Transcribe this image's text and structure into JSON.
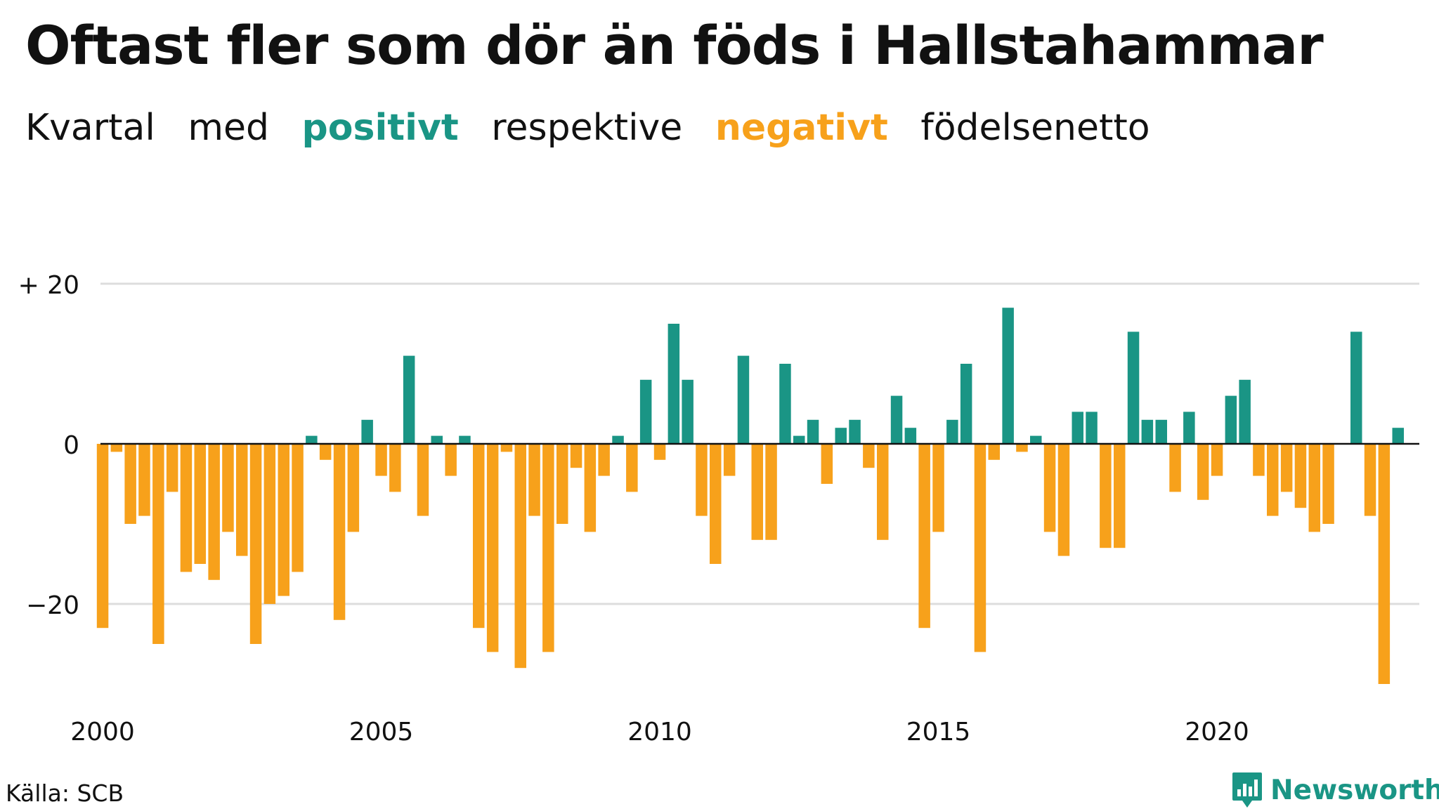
{
  "title": "Oftast fler som dör än föds i Hallstahammar",
  "subtitle": {
    "part1": "Kvartal",
    "part2": "med",
    "positive": "positivt",
    "part3": "respektive",
    "negative": "negativt",
    "part4": "födelsenetto"
  },
  "colors": {
    "positive": "#1a9585",
    "negative": "#f7a11b",
    "grid": "#dddddd",
    "zero_line": "#111111"
  },
  "source": "Källa: SCB",
  "logo": {
    "text": "Newsworthy",
    "icon": "bar-chart-icon"
  },
  "chart_data": {
    "type": "bar",
    "x_start": 2000,
    "x_step": 0.25,
    "xticks": [
      2000,
      2005,
      2010,
      2015,
      2020
    ],
    "xtick_labels": [
      "2000",
      "2005",
      "2010",
      "2015",
      "2020"
    ],
    "yticks": [
      20,
      0,
      -20
    ],
    "ytick_labels": [
      "+ 20",
      "0",
      "−20"
    ],
    "ylim": [
      -31,
      20
    ],
    "xlim": [
      2000,
      2024
    ],
    "grid": true,
    "values": [
      -23,
      -1,
      -10,
      -9,
      -25,
      -6,
      -16,
      -15,
      -17,
      -11,
      -14,
      -25,
      -20,
      -19,
      -16,
      1,
      -2,
      -22,
      -11,
      3,
      -4,
      -6,
      11,
      -9,
      1,
      -4,
      1,
      -23,
      -26,
      -1,
      -28,
      -9,
      -26,
      -10,
      -3,
      -11,
      -4,
      1,
      -6,
      8,
      -2,
      15,
      8,
      -9,
      -15,
      -4,
      11,
      -12,
      -12,
      10,
      1,
      3,
      -5,
      2,
      3,
      -3,
      -12,
      6,
      2,
      -23,
      -11,
      3,
      10,
      -26,
      -2,
      17,
      -1,
      1,
      -11,
      -14,
      4,
      4,
      -13,
      -13,
      14,
      3,
      3,
      -6,
      4,
      -7,
      -4,
      6,
      8,
      -4,
      -9,
      -6,
      -8,
      -11,
      -10,
      0,
      14,
      -9,
      -30,
      2
    ]
  }
}
